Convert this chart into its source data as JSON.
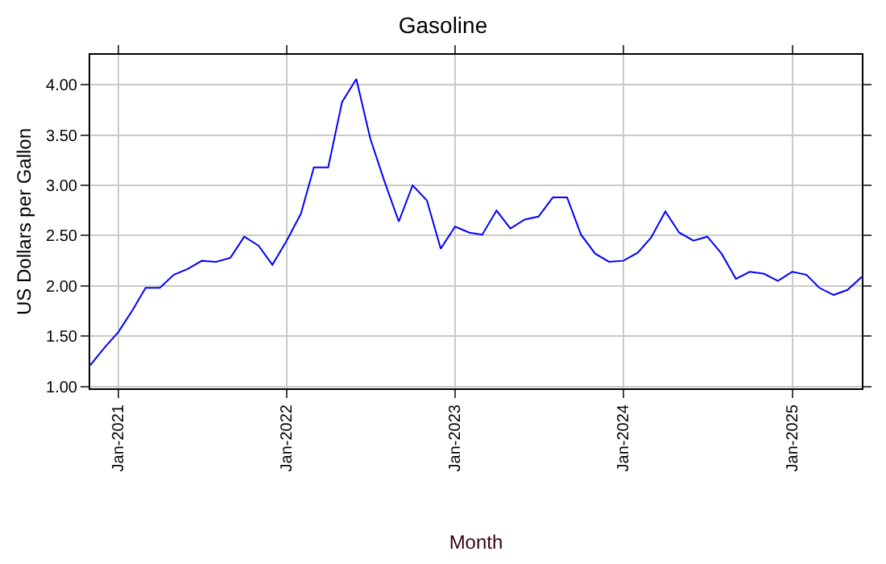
{
  "chart_data": {
    "type": "line",
    "title": "Gasoline",
    "xlabel": "Month",
    "ylabel": "US Dollars per Gallon",
    "x": [
      "2020-11",
      "2020-12",
      "2021-01",
      "2021-02",
      "2021-03",
      "2021-04",
      "2021-05",
      "2021-06",
      "2021-07",
      "2021-08",
      "2021-09",
      "2021-10",
      "2021-11",
      "2021-12",
      "2022-01",
      "2022-02",
      "2022-03",
      "2022-04",
      "2022-05",
      "2022-06",
      "2022-07",
      "2022-08",
      "2022-09",
      "2022-10",
      "2022-11",
      "2022-12",
      "2023-01",
      "2023-02",
      "2023-03",
      "2023-04",
      "2023-05",
      "2023-06",
      "2023-07",
      "2023-08",
      "2023-09",
      "2023-10",
      "2023-11",
      "2023-12",
      "2024-01",
      "2024-02",
      "2024-03",
      "2024-04",
      "2024-05",
      "2024-06",
      "2024-07",
      "2024-08",
      "2024-09",
      "2024-10",
      "2024-11",
      "2024-12",
      "2025-01",
      "2025-02",
      "2025-03",
      "2025-04",
      "2025-05",
      "2025-06"
    ],
    "series": [
      {
        "color": "#0000ff",
        "values": [
          1.21,
          1.38,
          1.54,
          1.76,
          1.98,
          1.98,
          2.11,
          2.17,
          2.25,
          2.24,
          2.28,
          2.49,
          2.4,
          2.21,
          2.45,
          2.72,
          3.18,
          3.18,
          3.83,
          4.06,
          3.47,
          3.04,
          2.64,
          3.0,
          2.85,
          2.37,
          2.59,
          2.53,
          2.51,
          2.75,
          2.57,
          2.66,
          2.69,
          2.88,
          2.88,
          2.51,
          2.32,
          2.24,
          2.25,
          2.33,
          2.48,
          2.74,
          2.53,
          2.45,
          2.49,
          2.32,
          2.07,
          2.14,
          2.12,
          2.05,
          2.14,
          2.11,
          1.98,
          1.91,
          1.96,
          2.09
        ]
      }
    ],
    "xlim": [
      "2020-11-01",
      "2025-06-01"
    ],
    "ylim": [
      0.98,
      4.3
    ],
    "xticks": [
      {
        "value": "2021-01-01",
        "label": "Jan-2021"
      },
      {
        "value": "2022-01-01",
        "label": "Jan-2022"
      },
      {
        "value": "2023-01-01",
        "label": "Jan-2023"
      },
      {
        "value": "2024-01-01",
        "label": "Jan-2024"
      },
      {
        "value": "2025-01-01",
        "label": "Jan-2025"
      }
    ],
    "yticks": [
      {
        "value": 1,
        "label": "1.00"
      },
      {
        "value": 1.5,
        "label": "1.50"
      },
      {
        "value": 2,
        "label": "2.00"
      },
      {
        "value": 2.5,
        "label": "2.50"
      },
      {
        "value": 3,
        "label": "3.00"
      },
      {
        "value": 3.5,
        "label": "3.50"
      },
      {
        "value": 4,
        "label": "4.00"
      }
    ],
    "grid": true,
    "legend": false,
    "marker": "none",
    "line_style": "solid"
  }
}
